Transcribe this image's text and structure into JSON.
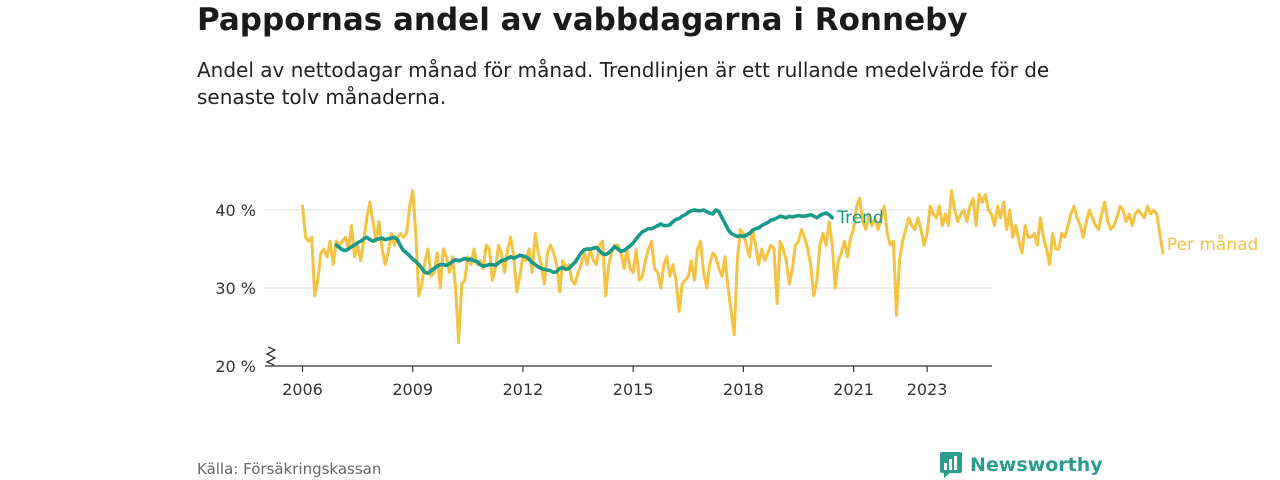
{
  "title": "Pappornas andel av vabbdagarna i Ronneby",
  "subtitle": "Andel av nettodagar månad för månad. Trendlinjen är ett rullande medelvärde för de senaste tolv månaderna.",
  "source": "Källa: Försäkringskassan",
  "brand": "Newsworthy",
  "colors": {
    "trend": "#1a9988",
    "monthly": "#f5c242",
    "brand": "#2a9d8f"
  },
  "chart_data": {
    "type": "line",
    "title": "Pappornas andel av vabbdagarna i Ronneby",
    "xlabel": "",
    "ylabel": "",
    "xlim": [
      2006,
      2023.95
    ],
    "ylim": [
      20,
      45
    ],
    "y_axis_break": true,
    "x_ticks": [
      2006,
      2009,
      2012,
      2015,
      2018,
      2021,
      2023
    ],
    "x_tick_labels": [
      "2006",
      "2009",
      "2012",
      "2015",
      "2018",
      "2021",
      "2023"
    ],
    "y_ticks": [
      20,
      30,
      40
    ],
    "y_tick_labels": [
      "20 %",
      "30 %",
      "40 %"
    ],
    "gridlines": [
      30,
      40
    ],
    "series": [
      {
        "name": "Per månad",
        "start_year": 2006.0,
        "step_months": 1,
        "values": [
          40.5,
          36.5,
          36.0,
          36.5,
          29.0,
          31.0,
          34.5,
          35.0,
          34.0,
          36.0,
          33.0,
          36.0,
          35.5,
          36.0,
          36.5,
          35.0,
          38.0,
          34.0,
          35.5,
          33.5,
          36.0,
          39.0,
          41.0,
          38.5,
          36.0,
          38.5,
          35.0,
          33.0,
          34.5,
          37.0,
          35.5,
          36.5,
          37.0,
          36.5,
          37.0,
          40.5,
          42.5,
          37.0,
          29.0,
          30.5,
          33.5,
          35.0,
          31.5,
          32.0,
          34.5,
          30.0,
          35.0,
          34.0,
          32.0,
          34.0,
          30.0,
          23.0,
          30.5,
          31.0,
          34.0,
          33.0,
          35.0,
          33.0,
          33.5,
          32.5,
          35.5,
          35.0,
          31.0,
          32.5,
          35.5,
          34.5,
          32.0,
          35.0,
          36.5,
          34.0,
          29.5,
          31.5,
          34.0,
          33.5,
          35.0,
          32.0,
          37.0,
          34.5,
          33.0,
          30.5,
          34.5,
          35.5,
          34.5,
          33.0,
          29.5,
          33.5,
          32.5,
          33.0,
          31.0,
          30.5,
          32.0,
          33.0,
          34.5,
          33.0,
          35.0,
          33.5,
          33.0,
          35.5,
          36.0,
          29.0,
          33.0,
          34.5,
          35.5,
          35.5,
          34.5,
          32.5,
          35.0,
          32.5,
          32.0,
          35.0,
          31.0,
          31.5,
          33.5,
          35.0,
          36.0,
          32.5,
          32.0,
          30.0,
          33.0,
          34.0,
          31.5,
          33.0,
          31.0,
          27.0,
          30.5,
          31.0,
          31.5,
          33.5,
          31.0,
          35.0,
          36.0,
          32.0,
          30.0,
          33.0,
          34.5,
          34.0,
          32.5,
          31.5,
          34.0,
          30.0,
          27.0,
          24.0,
          33.5,
          37.5,
          37.0,
          35.5,
          34.0,
          37.5,
          35.5,
          33.0,
          35.0,
          33.5,
          34.5,
          35.5,
          35.0,
          28.0,
          36.0,
          35.0,
          33.5,
          30.5,
          32.5,
          35.5,
          36.0,
          37.5,
          36.5,
          35.0,
          33.0,
          29.0,
          31.0,
          35.5,
          37.0,
          35.5,
          38.5,
          35.5,
          30.0,
          33.5,
          34.5,
          36.0,
          34.0,
          36.5,
          37.5,
          40.5,
          41.5,
          38.5,
          37.5,
          39.5,
          38.0,
          39.0,
          37.5,
          39.0,
          40.5,
          37.0,
          35.5,
          36.0,
          26.5,
          33.5,
          36.0,
          37.5,
          39.0,
          38.0,
          37.5,
          39.0,
          37.5,
          35.5,
          37.0,
          40.5,
          39.5,
          39.0,
          40.5,
          38.0,
          39.5,
          38.0,
          42.5,
          40.0,
          38.5,
          39.5,
          40.0,
          38.5,
          40.5,
          41.5,
          38.0,
          42.0,
          41.0,
          42.0,
          40.0,
          39.5,
          38.0,
          40.5,
          39.0,
          41.0,
          37.5,
          40.0,
          36.5,
          38.0,
          36.0,
          34.5,
          38.0,
          36.5,
          36.5,
          37.0,
          35.5,
          39.0,
          36.5,
          35.0,
          33.0,
          37.0,
          35.0,
          35.0,
          37.0,
          36.5,
          38.0,
          39.5,
          40.5,
          39.0,
          38.0,
          36.5,
          38.5,
          40.0,
          39.0,
          38.0,
          37.5,
          39.5,
          41.0,
          38.5,
          37.5,
          38.0,
          39.0,
          40.5,
          40.0,
          38.5,
          39.5,
          38.0,
          39.5,
          40.0,
          39.5,
          39.0,
          40.5,
          39.5,
          40.0,
          39.5,
          37.0,
          34.5
        ],
        "color": "#f5c242"
      },
      {
        "name": "Trend",
        "start_year": 2006.917,
        "step_months": 1,
        "values": [
          35.5,
          35.2,
          34.9,
          34.8,
          35.0,
          35.3,
          35.5,
          35.8,
          36.0,
          36.3,
          36.5,
          36.2,
          36.0,
          36.2,
          36.3,
          36.4,
          36.2,
          36.3,
          36.4,
          36.5,
          36.2,
          35.4,
          34.8,
          34.5,
          34.1,
          33.7,
          33.4,
          33.0,
          32.5,
          32.0,
          31.9,
          32.2,
          32.5,
          32.8,
          33.0,
          33.0,
          32.9,
          33.1,
          33.4,
          33.6,
          33.5,
          33.6,
          33.8,
          33.6,
          33.7,
          33.5,
          33.4,
          33.0,
          32.8,
          32.9,
          33.0,
          33.0,
          32.9,
          33.2,
          33.5,
          33.6,
          33.8,
          34.0,
          33.8,
          34.0,
          34.2,
          34.1,
          34.0,
          33.7,
          33.3,
          33.0,
          32.7,
          32.5,
          32.4,
          32.3,
          32.2,
          32.0,
          32.1,
          32.5,
          32.6,
          32.4,
          32.5,
          32.9,
          33.3,
          33.9,
          34.5,
          34.9,
          35.0,
          35.0,
          35.1,
          35.2,
          34.8,
          34.4,
          34.3,
          34.5,
          34.9,
          35.3,
          35.0,
          34.7,
          34.8,
          35.1,
          35.4,
          35.8,
          36.3,
          36.8,
          37.2,
          37.4,
          37.6,
          37.6,
          37.8,
          38.0,
          38.2,
          38.0,
          38.0,
          38.1,
          38.5,
          38.8,
          38.9,
          39.2,
          39.4,
          39.7,
          39.9,
          40.0,
          39.9,
          39.9,
          40.0,
          39.8,
          39.6,
          39.5,
          40.0,
          39.8,
          39.0,
          38.3,
          37.5,
          37.0,
          36.8,
          36.6,
          36.7,
          36.6,
          36.8,
          37.0,
          37.4,
          37.6,
          37.7,
          38.0,
          38.2,
          38.4,
          38.7,
          38.8,
          39.0,
          39.2,
          39.1,
          39.0,
          39.2,
          39.1,
          39.2,
          39.3,
          39.2,
          39.2,
          39.3,
          39.4,
          39.2,
          39.0,
          39.3,
          39.5,
          39.6,
          39.4,
          39.0
        ],
        "color": "#1a9988"
      }
    ],
    "legend": [
      {
        "name": "Trend",
        "color": "#1a9988"
      },
      {
        "name": "Per månad",
        "color": "#f5c242"
      }
    ]
  }
}
